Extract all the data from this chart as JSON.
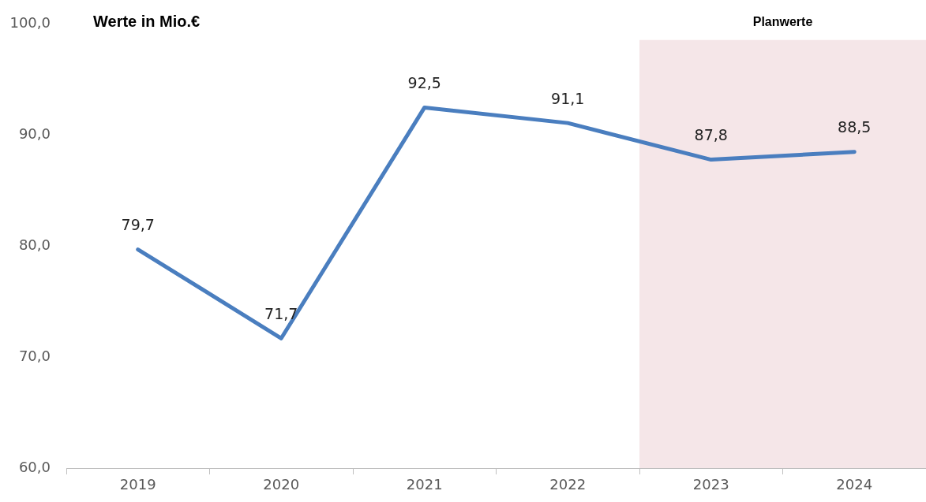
{
  "chart_data": {
    "type": "line",
    "title": "Werte in Mio.€",
    "categories": [
      "2019",
      "2020",
      "2021",
      "2022",
      "2023",
      "2024"
    ],
    "series": [
      {
        "color": "#4a7ebf",
        "values": [
          79.7,
          71.7,
          92.5,
          91.1,
          87.8,
          88.5
        ]
      }
    ],
    "ylim": [
      60,
      100
    ],
    "yticks": [
      {
        "value": 60,
        "label": "60,0"
      },
      {
        "value": 70,
        "label": "70,0"
      },
      {
        "value": 80,
        "label": "80,0"
      },
      {
        "value": 90,
        "label": "90,0"
      },
      {
        "value": 100,
        "label": "100,0"
      }
    ],
    "value_labels": [
      "79,7",
      "71,7",
      "92,5",
      "91,1",
      "87,8",
      "88,5"
    ],
    "bands": [
      {
        "axis": "x",
        "from": "2023",
        "to": "2024",
        "label": "Planwerte",
        "color": "#f5e6e8"
      }
    ],
    "grid": false,
    "legend": false,
    "marker": "none",
    "line_style": "solid"
  }
}
